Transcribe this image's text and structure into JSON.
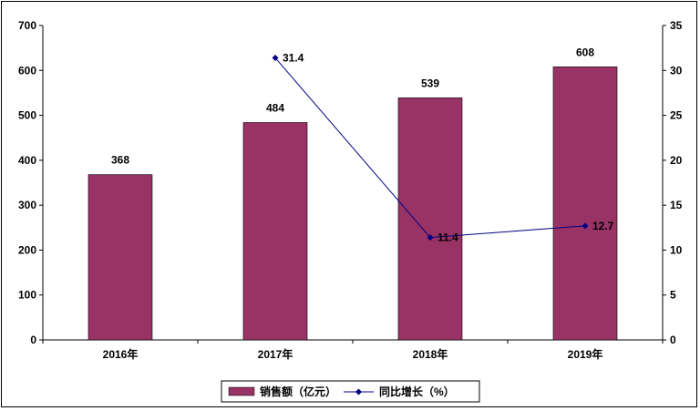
{
  "chart_data": {
    "type": "bar+line",
    "categories": [
      "2016年",
      "2017年",
      "2018年",
      "2019年"
    ],
    "series": [
      {
        "name": "销售额（亿元）",
        "type": "bar",
        "axis": "left",
        "values": [
          368,
          484,
          539,
          608
        ],
        "color": "#993366"
      },
      {
        "name": "同比增长（%）",
        "type": "line",
        "axis": "right",
        "values": [
          null,
          31.4,
          11.4,
          12.7
        ],
        "color": "#000080"
      }
    ],
    "y_left": {
      "min": 0,
      "max": 700,
      "step": 100,
      "ticks": [
        "0",
        "100",
        "200",
        "300",
        "400",
        "500",
        "600",
        "700"
      ]
    },
    "y_right": {
      "min": 0,
      "max": 35,
      "step": 5,
      "ticks": [
        "0",
        "5",
        "10",
        "15",
        "20",
        "25",
        "30",
        "35"
      ]
    },
    "bar_labels": [
      "368",
      "484",
      "539",
      "608"
    ],
    "line_labels": [
      "",
      "31.4",
      "11.4",
      "12.7"
    ],
    "legend_position": "bottom",
    "grid": false
  }
}
